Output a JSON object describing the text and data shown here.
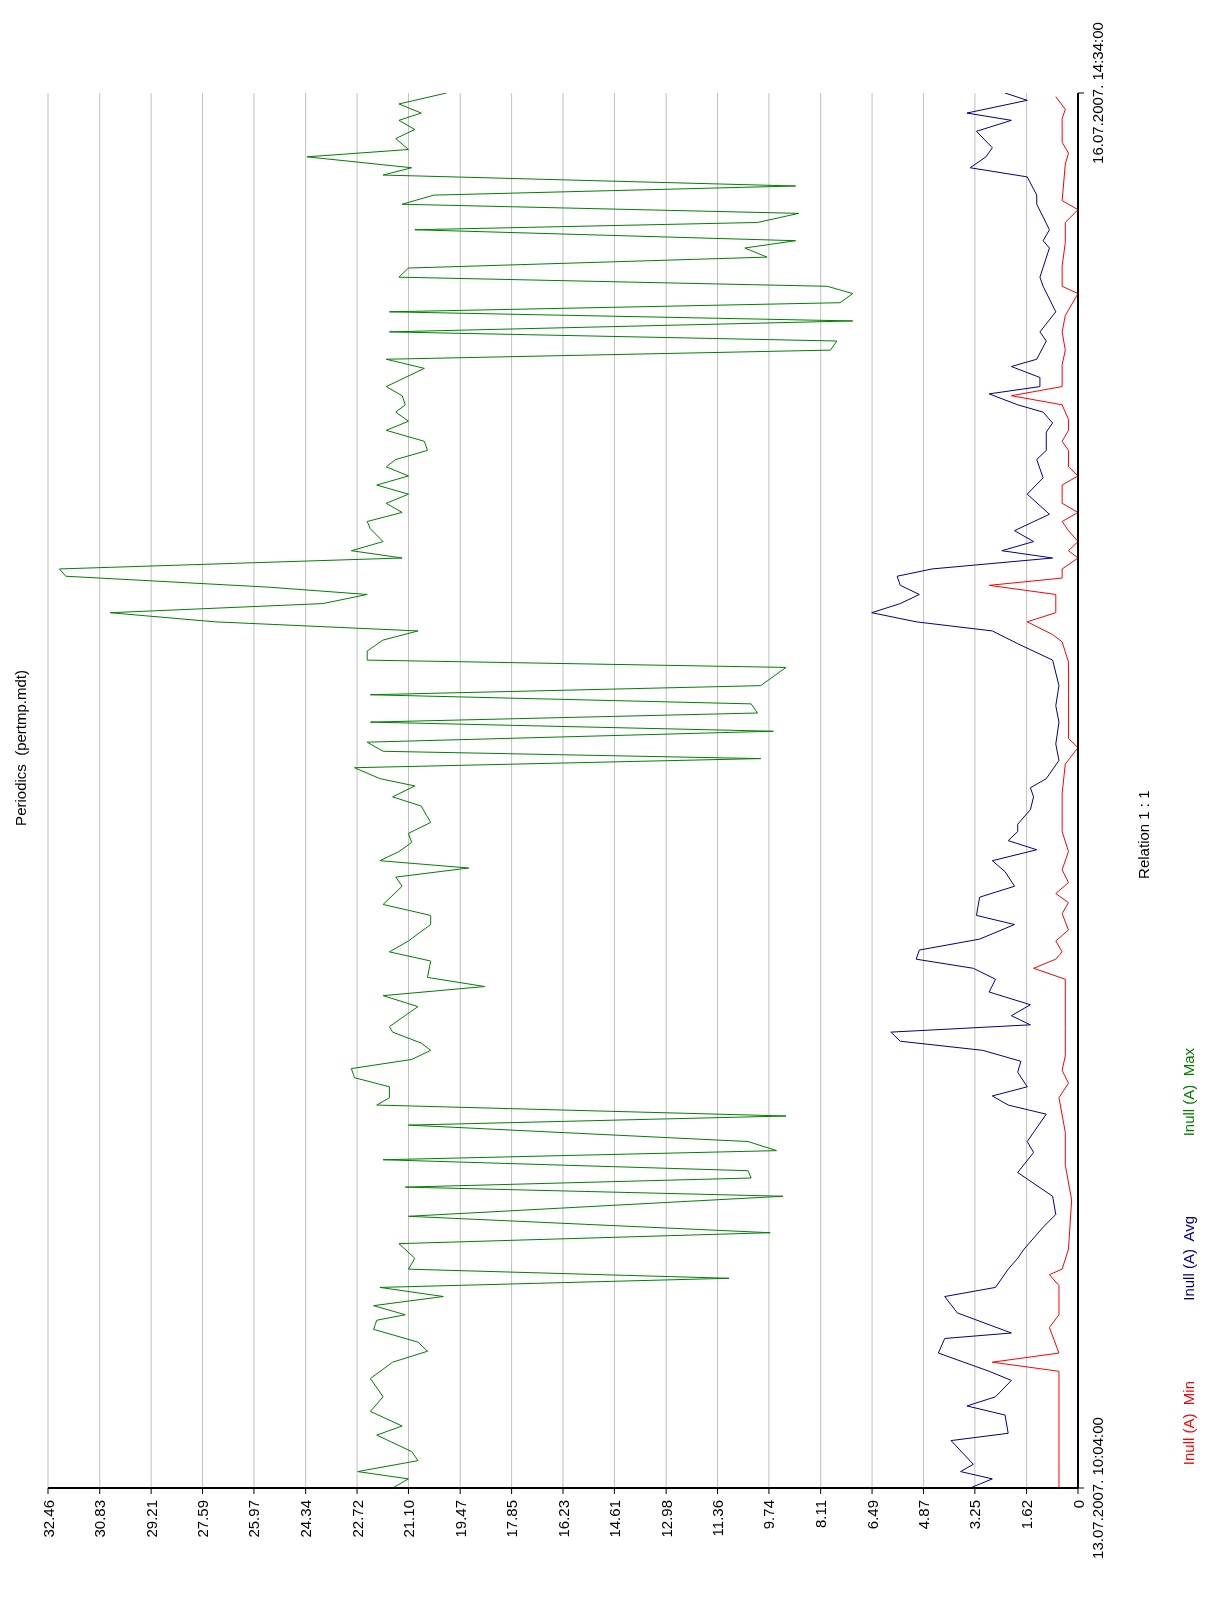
{
  "chart_data": {
    "type": "line",
    "title": "Periodics  (pertmp.mdt)",
    "ylabel": "Relation 1 : 1",
    "ylim": [
      "2007-07-13T10:04",
      "2007-07-16T14:34"
    ],
    "yticks": [
      {
        "value": "2007-07-13T10:04",
        "label": "13.07.2007. 10:04:00"
      },
      {
        "value": "2007-07-16T14:34",
        "label": "16.07.2007. 14:34:00"
      }
    ],
    "xlim": [
      32.46,
      0
    ],
    "xticks": [
      0,
      1.62,
      3.25,
      4.87,
      6.49,
      8.11,
      9.74,
      11.36,
      12.98,
      14.61,
      16.23,
      17.85,
      19.47,
      {
        "value": 21.1,
        "label": "21.10"
      },
      22.72,
      24.34,
      25.97,
      27.59,
      29.21,
      30.83,
      32.46
    ],
    "grid": "x",
    "legend": "right",
    "orientation": "horizontal",
    "series": [
      {
        "name": "Inull (A)  Min",
        "color": "#ff0000",
        "x": [
          "2007-07-13T10:04",
          "2007-07-13T16:28",
          "2007-07-13T16:58",
          "2007-07-13T17:28",
          "2007-07-13T18:52",
          "2007-07-13T19:34",
          "2007-07-13T21:10",
          "2007-07-13T21:46",
          "2007-07-13T22:04",
          "2007-07-13T23:10",
          "2007-07-14T01:52",
          "2007-07-14T03:46",
          "2007-07-14T05:34",
          "2007-07-14T07:28",
          "2007-07-14T08:16",
          "2007-07-14T08:58",
          "2007-07-14T09:46",
          "2007-07-14T11:16",
          "2007-07-14T13:58",
          "2007-07-14T14:34",
          "2007-07-14T15:04",
          "2007-07-14T15:28",
          "2007-07-14T16:04",
          "2007-07-14T16:40",
          "2007-07-14T17:34",
          "2007-07-14T18:10",
          "2007-07-14T18:40",
          "2007-07-14T19:16",
          "2007-07-14T19:58",
          "2007-07-14T20:58",
          "2007-07-14T22:04",
          "2007-07-14T23:04",
          "2007-07-15T00:10",
          "2007-07-15T01:46",
          "2007-07-15T02:40",
          "2007-07-15T03:10",
          "2007-07-15T05:34",
          "2007-07-15T07:22",
          "2007-07-15T08:28",
          "2007-07-15T08:52",
          "2007-07-15T09:34",
          "2007-07-15T10:04",
          "2007-07-15T11:04",
          "2007-07-15T11:34",
          "2007-07-15T11:58",
          "2007-07-15T12:28",
          "2007-07-15T13:04",
          "2007-07-15T13:28",
          "2007-07-15T13:58",
          "2007-07-15T14:34",
          "2007-07-15T15:04",
          "2007-07-15T15:34",
          "2007-07-15T16:04",
          "2007-07-15T17:04",
          "2007-07-15T17:34",
          "2007-07-15T18:04",
          "2007-07-15T18:58",
          "2007-07-15T19:28",
          "2007-07-15T20:04",
          "2007-07-15T20:40",
          "2007-07-15T21:28",
          "2007-07-15T21:58",
          "2007-07-15T22:28",
          "2007-07-15T23:40",
          "2007-07-16T00:28",
          "2007-07-16T01:28",
          "2007-07-16T02:22",
          "2007-07-16T03:34",
          "2007-07-16T03:58",
          "2007-07-16T05:04",
          "2007-07-16T06:22",
          "2007-07-16T07:28",
          "2007-07-16T08:10",
          "2007-07-16T08:40",
          "2007-07-16T10:40",
          "2007-07-16T11:16",
          "2007-07-16T11:52",
          "2007-07-16T12:16",
          "2007-07-16T13:10",
          "2007-07-16T13:40",
          "2007-07-16T14:22"
        ],
        "values": [
          0.6,
          0.6,
          2.7,
          0.6,
          0.9,
          0.6,
          0.6,
          0.9,
          0.5,
          0.3,
          0.2,
          0.4,
          0.4,
          0.6,
          0.3,
          0.5,
          0.4,
          0.4,
          0.4,
          1.4,
          0.7,
          0.5,
          0.7,
          0.3,
          0.5,
          0.3,
          0.7,
          0.3,
          0.5,
          0.3,
          0.5,
          0.5,
          0.5,
          0.4,
          0,
          0.3,
          0.3,
          0.3,
          0.5,
          0.8,
          1.6,
          0.7,
          0.7,
          2.8,
          0.5,
          0.5,
          0,
          0.3,
          0,
          0.3,
          0.5,
          0,
          0.5,
          0.5,
          0,
          0.3,
          0.3,
          0.5,
          0.3,
          0.3,
          0.5,
          2.1,
          0.5,
          0.5,
          0.4,
          0.5,
          0.4,
          0,
          0.5,
          0.5,
          0.4,
          0.4,
          0,
          0.5,
          0.4,
          0.3,
          0.5,
          0.5,
          0.5,
          0.4,
          0.7
        ]
      },
      {
        "name": "Inull (A)  Avg",
        "color": "#00008b",
        "x": [
          "2007-07-13T10:04",
          "2007-07-13T10:34",
          "2007-07-13T10:58",
          "2007-07-13T11:22",
          "2007-07-13T12:40",
          "2007-07-13T13:04",
          "2007-07-13T14:04",
          "2007-07-13T14:34",
          "2007-07-13T15:04",
          "2007-07-13T15:58",
          "2007-07-13T16:28",
          "2007-07-13T17:28",
          "2007-07-13T18:16",
          "2007-07-13T18:34",
          "2007-07-13T19:40",
          "2007-07-13T20:34",
          "2007-07-13T21:04",
          "2007-07-13T22:04",
          "2007-07-13T22:40",
          "2007-07-13T23:10",
          "2007-07-14T00:22",
          "2007-07-14T01:04",
          "2007-07-14T02:04",
          "2007-07-14T03:22",
          "2007-07-14T04:28",
          "2007-07-14T05:04",
          "2007-07-14T06:34",
          "2007-07-14T07:04",
          "2007-07-14T07:34",
          "2007-07-14T08:04",
          "2007-07-14T08:52",
          "2007-07-14T09:28",
          "2007-07-14T10:04",
          "2007-07-14T10:34",
          "2007-07-14T11:04",
          "2007-07-14T11:28",
          "2007-07-14T11:58",
          "2007-07-14T12:34",
          "2007-07-14T13:16",
          "2007-07-14T13:58",
          "2007-07-14T14:34",
          "2007-07-14T15:04",
          "2007-07-14T15:34",
          "2007-07-14T16:10",
          "2007-07-14T16:58",
          "2007-07-14T17:28",
          "2007-07-14T18:28",
          "2007-07-14T19:04",
          "2007-07-14T19:52",
          "2007-07-14T20:28",
          "2007-07-14T21:04",
          "2007-07-14T21:34",
          "2007-07-14T22:04",
          "2007-07-14T22:28",
          "2007-07-14T23:16",
          "2007-07-14T23:58",
          "2007-07-15T00:28",
          "2007-07-15T00:58",
          "2007-07-15T01:58",
          "2007-07-15T02:52",
          "2007-07-15T04:04",
          "2007-07-15T04:58",
          "2007-07-15T06:04",
          "2007-07-15T07:28",
          "2007-07-15T08:22",
          "2007-07-15T09:04",
          "2007-07-15T09:34",
          "2007-07-15T10:04",
          "2007-07-15T10:34",
          "2007-07-15T11:04",
          "2007-07-15T11:34",
          "2007-07-15T12:04",
          "2007-07-15T12:28",
          "2007-07-15T13:04",
          "2007-07-15T13:28",
          "2007-07-15T13:58",
          "2007-07-15T14:34",
          "2007-07-15T15:28",
          "2007-07-15T16:34",
          "2007-07-15T17:28",
          "2007-07-15T18:28",
          "2007-07-15T18:58",
          "2007-07-15T19:58",
          "2007-07-15T20:28",
          "2007-07-15T21:04",
          "2007-07-15T21:28",
          "2007-07-15T22:04",
          "2007-07-15T22:28",
          "2007-07-15T22:58",
          "2007-07-15T23:34",
          "2007-07-15T23:58",
          "2007-07-16T00:58",
          "2007-07-16T01:28",
          "2007-07-16T02:34",
          "2007-07-16T03:58",
          "2007-07-16T04:28",
          "2007-07-16T06:04",
          "2007-07-16T06:28",
          "2007-07-16T07:04",
          "2007-07-16T08:28",
          "2007-07-16T08:58",
          "2007-07-16T09:58",
          "2007-07-16T10:28",
          "2007-07-16T11:04",
          "2007-07-16T11:34",
          "2007-07-16T12:28",
          "2007-07-16T13:04",
          "2007-07-16T13:28",
          "2007-07-16T14:10",
          "2007-07-16T14:34"
        ],
        "values": [
          3.4,
          2.7,
          3.7,
          3.3,
          4.0,
          2.2,
          2.3,
          3.5,
          2.6,
          2.1,
          2.8,
          4.4,
          4.2,
          2.1,
          3.8,
          4.2,
          2.6,
          2.2,
          1.9,
          1.7,
          1.1,
          0.7,
          0.8,
          1.9,
          1.4,
          1.6,
          1.0,
          2.2,
          2.7,
          1.6,
          1.9,
          1.8,
          3.0,
          5.6,
          5.9,
          1.5,
          2.1,
          1.5,
          2.8,
          2.6,
          3.3,
          5.1,
          5.0,
          3.1,
          2.0,
          3.2,
          3.1,
          2.0,
          2.3,
          2.7,
          1.3,
          2.2,
          1.9,
          1.9,
          1.5,
          1.4,
          1.5,
          1.0,
          0.6,
          0.7,
          0.6,
          0.7,
          0.6,
          0.8,
          1.9,
          2.7,
          5.1,
          6.5,
          5.6,
          5.0,
          5.6,
          5.7,
          4.6,
          0.8,
          2.4,
          1.4,
          2.0,
          0.9,
          1.6,
          1.1,
          1.3,
          1.0,
          1.0,
          0.8,
          1.1,
          1.9,
          2.8,
          1.2,
          1.2,
          2.1,
          1.3,
          1.0,
          1.2,
          0.7,
          1.1,
          1.2,
          0.9,
          1.1,
          0.9,
          1.3,
          1.3,
          1.6,
          3.4,
          2.9,
          2.7,
          3.2,
          2.1,
          3.5,
          1.6,
          2.3
        ]
      },
      {
        "name": "Inull (A)  Max",
        "color": "#008000",
        "x": [
          "2007-07-13T10:04",
          "2007-07-13T10:34",
          "2007-07-13T10:58",
          "2007-07-13T11:34",
          "2007-07-13T12:04",
          "2007-07-13T12:58",
          "2007-07-13T13:28",
          "2007-07-13T14:16",
          "2007-07-13T15:04",
          "2007-07-13T16:04",
          "2007-07-13T16:58",
          "2007-07-13T17:34",
          "2007-07-13T18:04",
          "2007-07-13T18:46",
          "2007-07-13T19:16",
          "2007-07-13T19:34",
          "2007-07-13T20:04",
          "2007-07-13T20:34",
          "2007-07-13T21:04",
          "2007-07-13T21:34",
          "2007-07-13T22:04",
          "2007-07-13T22:40",
          "2007-07-13T23:28",
          "2007-07-14T00:04",
          "2007-07-14T00:58",
          "2007-07-14T02:04",
          "2007-07-14T02:34",
          "2007-07-14T03:04",
          "2007-07-14T03:28",
          "2007-07-14T04:04",
          "2007-07-14T04:34",
          "2007-07-14T05:04",
          "2007-07-14T05:58",
          "2007-07-14T06:28",
          "2007-07-14T07:04",
          "2007-07-14T07:28",
          "2007-07-14T08:04",
          "2007-07-14T08:34",
          "2007-07-14T09:04",
          "2007-07-14T09:34",
          "2007-07-14T10:04",
          "2007-07-14T10:28",
          "2007-07-14T11:04",
          "2007-07-14T11:22",
          "2007-07-14T12:28",
          "2007-07-14T13:04",
          "2007-07-14T13:34",
          "2007-07-14T14:04",
          "2007-07-14T14:58",
          "2007-07-14T15:28",
          "2007-07-14T16:04",
          "2007-07-14T16:58",
          "2007-07-14T17:28",
          "2007-07-14T18:04",
          "2007-07-14T19:04",
          "2007-07-14T19:34",
          "2007-07-14T20:04",
          "2007-07-14T20:28",
          "2007-07-14T20:58",
          "2007-07-14T21:28",
          "2007-07-14T21:58",
          "2007-07-14T22:34",
          "2007-07-14T23:28",
          "2007-07-14T23:58",
          "2007-07-15T00:34",
          "2007-07-15T00:58",
          "2007-07-15T01:34",
          "2007-07-15T02:04",
          "2007-07-15T02:28",
          "2007-07-15T02:58",
          "2007-07-15T03:34",
          "2007-07-15T04:04",
          "2007-07-15T04:34",
          "2007-07-15T05:04",
          "2007-07-15T05:34",
          "2007-07-15T06:04",
          "2007-07-15T07:04",
          "2007-07-15T07:28",
          "2007-07-15T07:58",
          "2007-07-15T08:34",
          "2007-07-15T09:04",
          "2007-07-15T09:34",
          "2007-07-15T10:04",
          "2007-07-15T10:34",
          "2007-07-15T11:04",
          "2007-07-15T11:28",
          "2007-07-15T12:04",
          "2007-07-15T12:28",
          "2007-07-15T13:04",
          "2007-07-15T13:28",
          "2007-07-15T13:58",
          "2007-07-15T14:40",
          "2007-07-15T15:04",
          "2007-07-15T15:34",
          "2007-07-15T16:04",
          "2007-07-15T16:34",
          "2007-07-15T17:04",
          "2007-07-15T17:34",
          "2007-07-15T18:04",
          "2007-07-15T18:28",
          "2007-07-15T18:58",
          "2007-07-15T19:28",
          "2007-07-15T20:04",
          "2007-07-15T20:34",
          "2007-07-15T21:04",
          "2007-07-15T21:28",
          "2007-07-15T21:58",
          "2007-07-15T22:28",
          "2007-07-15T23:28",
          "2007-07-15T23:58",
          "2007-07-16T00:28",
          "2007-07-16T00:58",
          "2007-07-16T01:28",
          "2007-07-16T02:04",
          "2007-07-16T02:34",
          "2007-07-16T03:04",
          "2007-07-16T03:34",
          "2007-07-16T03:58",
          "2007-07-16T04:28",
          "2007-07-16T04:58",
          "2007-07-16T05:34",
          "2007-07-16T06:04",
          "2007-07-16T06:28",
          "2007-07-16T07:04",
          "2007-07-16T07:28",
          "2007-07-16T07:58",
          "2007-07-16T08:28",
          "2007-07-16T08:58",
          "2007-07-16T09:28",
          "2007-07-16T10:04",
          "2007-07-16T10:28",
          "2007-07-16T11:04",
          "2007-07-16T11:28",
          "2007-07-16T12:04",
          "2007-07-16T12:34",
          "2007-07-16T13:04",
          "2007-07-16T13:28",
          "2007-07-16T13:58",
          "2007-07-16T14:34"
        ],
        "values": [
          21.6,
          21.1,
          22.7,
          20.8,
          21.0,
          22.1,
          21.3,
          22.3,
          21.9,
          22.3,
          21.6,
          20.5,
          20.8,
          22.2,
          22.1,
          21.2,
          22.2,
          20.0,
          22.0,
          11.0,
          21.1,
          20.9,
          21.4,
          9.7,
          21.1,
          9.3,
          21.2,
          10.3,
          10.4,
          21.9,
          9.5,
          10.4,
          21.1,
          9.2,
          22.1,
          21.7,
          21.7,
          22.8,
          22.9,
          21.0,
          20.4,
          20.7,
          21.6,
          21.7,
          20.8,
          21.9,
          18.7,
          20.5,
          20.4,
          21.7,
          21.1,
          20.4,
          20.4,
          21.9,
          21.3,
          21.5,
          19.2,
          22.0,
          21.4,
          21.0,
          21.1,
          20.4,
          20.7,
          21.6,
          20.9,
          22.0,
          22.8,
          10.0,
          21.9,
          22.4,
          9.6,
          22.3,
          10.1,
          10.3,
          22.3,
          10.0,
          9.2,
          22.4,
          22.4,
          21.9,
          20.8,
          27.2,
          30.5,
          23.8,
          22.4,
          25.5,
          31.9,
          32.1,
          21.3,
          22.9,
          21.9,
          22.3,
          22.4,
          21.3,
          21.8,
          21.1,
          22.1,
          21.1,
          21.8,
          21.5,
          20.5,
          20.6,
          21.8,
          21.1,
          21.5,
          21.2,
          21.3,
          21.8,
          20.6,
          21.8,
          7.8,
          7.6,
          21.7,
          7.1,
          21.7,
          7.5,
          7.1,
          7.9,
          21.4,
          21.1,
          9.8,
          10.5,
          8.9,
          20.9,
          10.1,
          8.8,
          21.3,
          20.3,
          8.9,
          21.9,
          21.0,
          24.3,
          21.1,
          21.5,
          20.9,
          21.4,
          20.7,
          21.4,
          19.9
        ]
      }
    ]
  }
}
